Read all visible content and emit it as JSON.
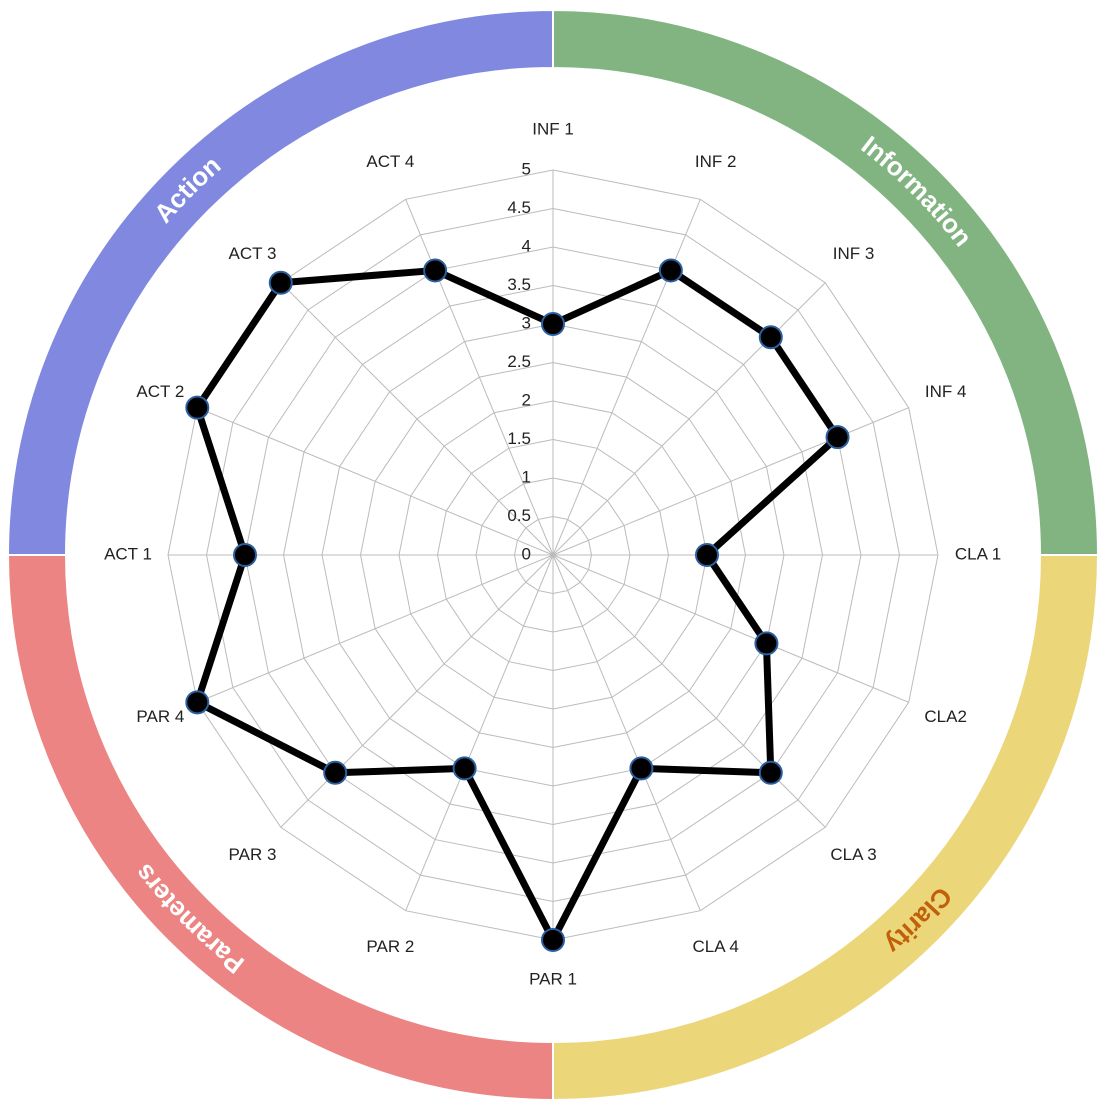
{
  "chart_data": {
    "type": "radar",
    "categories": [
      "INF 1",
      "INF 2",
      "INF 3",
      "INF 4",
      "CLA 1",
      "CLA2",
      "CLA 3",
      "CLA 4",
      "PAR 1",
      "PAR 2",
      "PAR 3",
      "PAR 4",
      "ACT 1",
      "ACT 2",
      "ACT 3",
      "ACT 4"
    ],
    "values": [
      3,
      4,
      4,
      4,
      2,
      3,
      4,
      3,
      5,
      3,
      4,
      5,
      4,
      5,
      5,
      4
    ],
    "color": "#000000",
    "marker_color": "#000000",
    "rlim": [
      0,
      5
    ],
    "rticks": [
      0,
      0.5,
      1,
      1.5,
      2,
      2.5,
      3,
      3.5,
      4,
      4.5,
      5
    ],
    "grid": true,
    "groups": [
      {
        "label": "Information",
        "color": "#82b482",
        "text_color": "#ffffff"
      },
      {
        "label": "Clarity",
        "color": "#ecd67a",
        "text_color": "#c0600a"
      },
      {
        "label": "Parameters",
        "color": "#ec8484",
        "text_color": "#ffffff"
      },
      {
        "label": "Action",
        "color": "#8088e0",
        "text_color": "#ffffff"
      }
    ]
  }
}
